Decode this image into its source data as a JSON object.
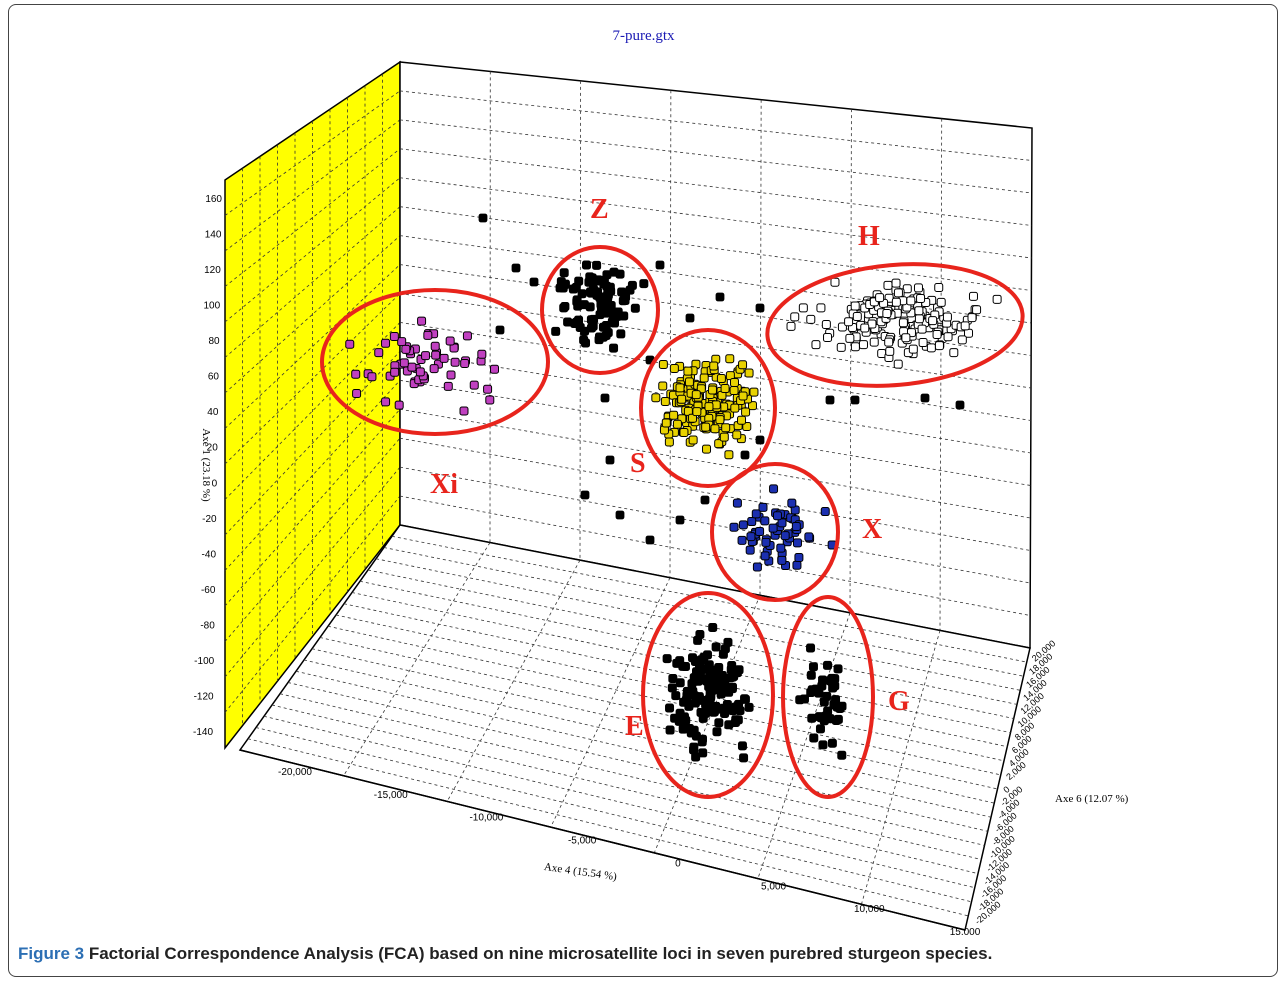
{
  "title": "7-pure.gtx",
  "caption": {
    "label": "Figure 3",
    "text": " Factorial Correspondence Analysis (FCA) based on nine microsatellite loci in seven purebred sturgeon species."
  },
  "colors": {
    "wall": "#ffff00",
    "ellipse": "#e8241c",
    "title": "#1a1ab4",
    "caption_label": "#2c6fb4",
    "S": "#e8d200",
    "Xi": "#c040c0",
    "X": "#1b2fb0",
    "H": "#ffffff",
    "Z": "#000000",
    "E": "#000000",
    "G": "#000000"
  },
  "chart_data": {
    "type": "scatter",
    "title": "7-pure.gtx",
    "three_d": true,
    "axes": {
      "vertical": {
        "label": "Axe 1 (23.18 %)",
        "ticks": [
          "160",
          "140",
          "120",
          "100",
          "80",
          "60",
          "40",
          "20",
          "0",
          "-20",
          "-40",
          "-60",
          "-80",
          "-100",
          "-120",
          "-140"
        ],
        "range": [
          -160,
          160
        ]
      },
      "x": {
        "label": "Axe 4 (15.54 %)",
        "ticks": [
          "-20,000",
          "-15,000",
          "-10,000",
          "-5,000",
          "0",
          "5,000",
          "10,000",
          "15,000"
        ],
        "range": [
          -22000,
          16000
        ]
      },
      "depth": {
        "label": "Axe 6 (12.07 %)",
        "ticks": [
          "20,000",
          "18,000",
          "16,000",
          "14,000",
          "12,000",
          "10,000",
          "8,000",
          "6,000",
          "4,000",
          "2,000",
          "0",
          "-2,000",
          "-4,000",
          "-6,000",
          "-8,000",
          "-10,000",
          "-12,000",
          "-14,000",
          "-16,000",
          "-18,000",
          "-20,000"
        ],
        "range": [
          -20000,
          20000
        ]
      }
    },
    "grid": true,
    "clusters": [
      {
        "label": "Xi",
        "color": "#c040c0",
        "approx_points": 60
      },
      {
        "label": "Z",
        "color": "#000000",
        "approx_points": 90
      },
      {
        "label": "S",
        "color": "#e8d200",
        "approx_points": 180
      },
      {
        "label": "H",
        "color": "#ffffff",
        "approx_points": 170
      },
      {
        "label": "X",
        "color": "#1b2fb0",
        "approx_points": 60
      },
      {
        "label": "E",
        "color": "#000000",
        "approx_points": 140
      },
      {
        "label": "G",
        "color": "#000000",
        "approx_points": 40
      }
    ]
  }
}
